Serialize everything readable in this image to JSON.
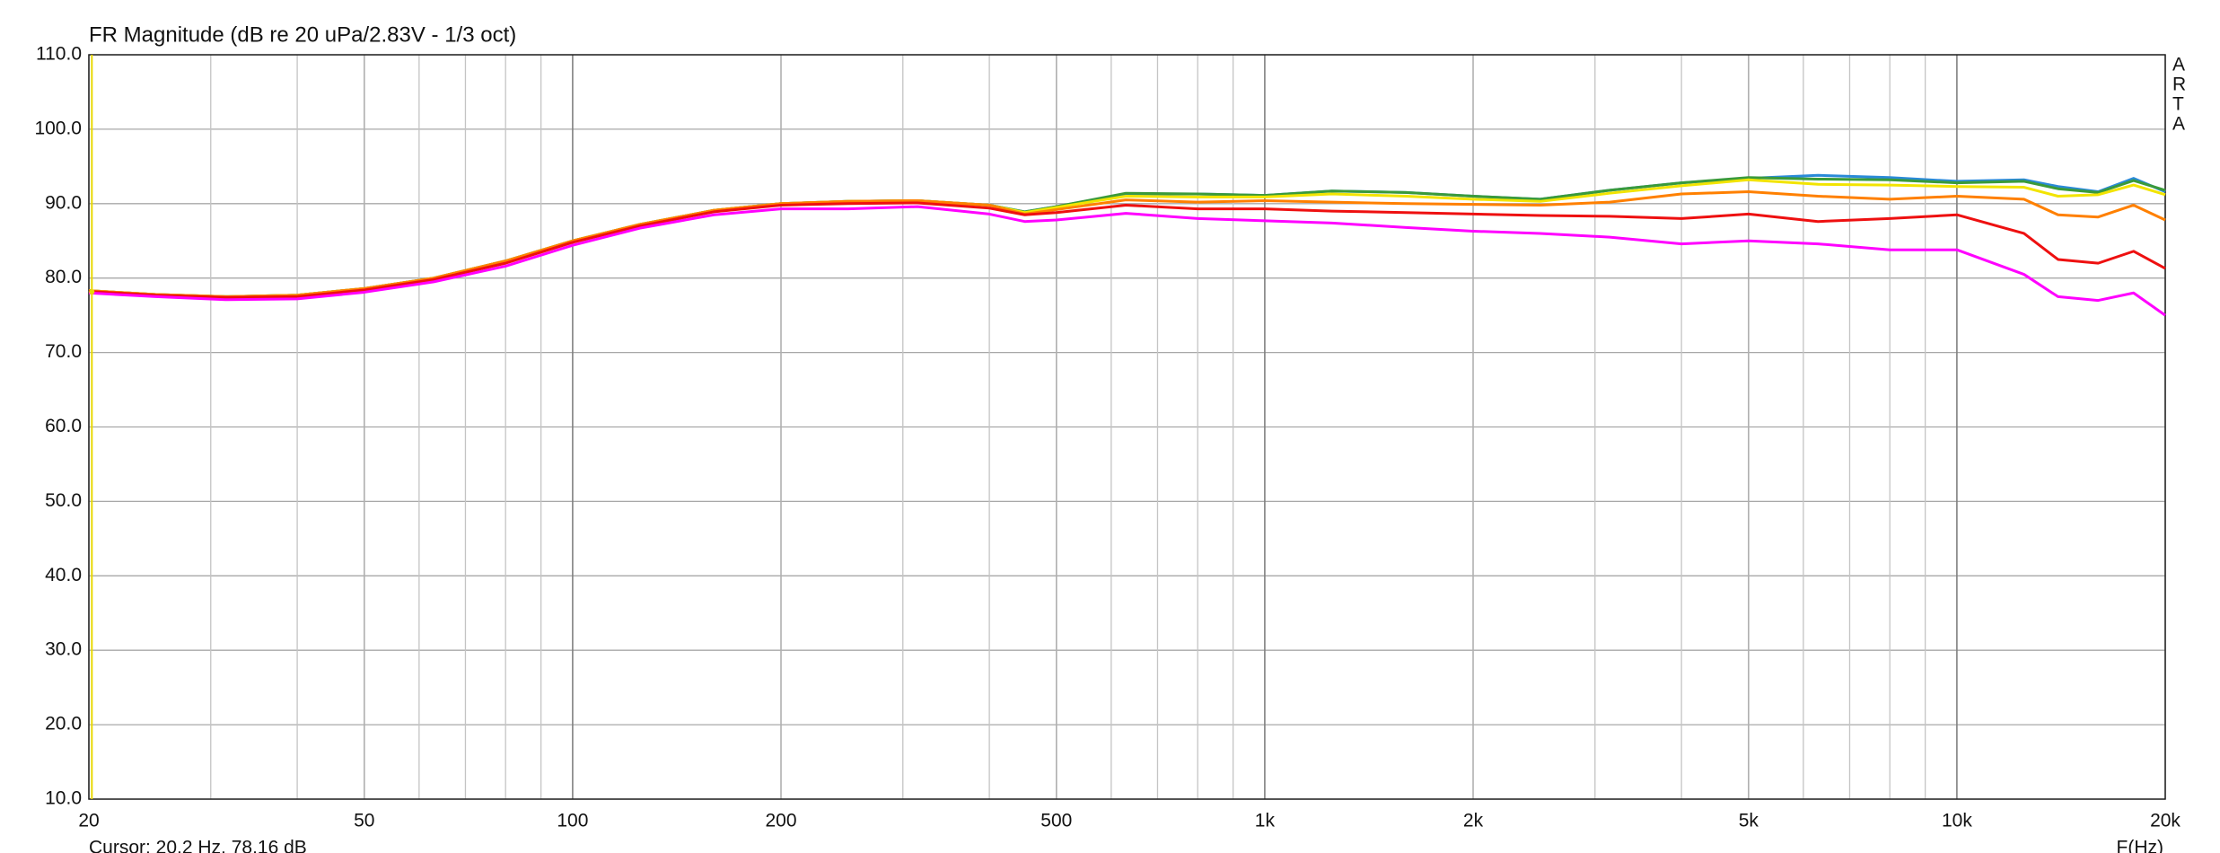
{
  "chart_data": {
    "type": "line",
    "title": "FR Magnitude (dB re 20 uPa/2.83V - 1/3 oct)",
    "x_label": "F(Hz)",
    "side_label": [
      "A",
      "R",
      "T",
      "A"
    ],
    "cursor": {
      "label": "Cursor: 20.2 Hz, 78.16 dB",
      "x": 20.2,
      "y": 78.16,
      "color": "#e8d800"
    },
    "xscale": "log",
    "grid": true,
    "xlim": [
      20,
      20000
    ],
    "ylim": [
      10,
      110
    ],
    "xticks": [
      20,
      50,
      100,
      200,
      500,
      {
        "value": 1000,
        "label": "1k"
      },
      {
        "value": 2000,
        "label": "2k"
      },
      {
        "value": 5000,
        "label": "5k"
      },
      {
        "value": 10000,
        "label": "10k"
      },
      {
        "value": 20000,
        "label": "20k"
      }
    ],
    "xminorticks": [
      30,
      40,
      60,
      70,
      80,
      90,
      300,
      400,
      600,
      700,
      800,
      900,
      3000,
      4000,
      6000,
      7000,
      8000,
      9000
    ],
    "yticks": [
      {
        "value": 10,
        "label": "10.0"
      },
      {
        "value": 20,
        "label": "20.0"
      },
      {
        "value": 30,
        "label": "30.0"
      },
      {
        "value": 40,
        "label": "40.0"
      },
      {
        "value": 50,
        "label": "50.0"
      },
      {
        "value": 60,
        "label": "60.0"
      },
      {
        "value": 70,
        "label": "70.0"
      },
      {
        "value": 80,
        "label": "80.0"
      },
      {
        "value": 90,
        "label": "90.0"
      },
      {
        "value": 100,
        "label": "100.0"
      },
      {
        "value": 110,
        "label": "110.0"
      }
    ],
    "x": [
      20,
      25,
      31.5,
      40,
      50,
      63,
      80,
      100,
      125,
      160,
      200,
      250,
      315,
      400,
      450,
      500,
      630,
      800,
      1000,
      1250,
      1600,
      2000,
      2500,
      3150,
      4000,
      5000,
      6300,
      8000,
      10000,
      12500,
      14000,
      16000,
      18000,
      20000
    ],
    "series": [
      {
        "color": "#2a8ad8",
        "values": [
          78.3,
          77.8,
          77.5,
          77.7,
          78.6,
          80.0,
          82.3,
          85.0,
          87.2,
          89.1,
          90.0,
          90.3,
          90.4,
          89.8,
          88.9,
          89.6,
          91.3,
          91.3,
          91.1,
          91.7,
          91.5,
          91.0,
          90.6,
          91.8,
          92.8,
          93.4,
          93.8,
          93.5,
          93.0,
          93.2,
          92.3,
          91.6,
          93.4,
          91.6
        ]
      },
      {
        "color": "#3a9a3a",
        "values": [
          78.3,
          77.8,
          77.5,
          77.7,
          78.6,
          80.0,
          82.3,
          85.0,
          87.2,
          89.1,
          90.0,
          90.3,
          90.4,
          89.8,
          88.9,
          89.6,
          91.4,
          91.3,
          91.1,
          91.7,
          91.5,
          91.0,
          90.6,
          91.8,
          92.8,
          93.5,
          93.3,
          93.2,
          92.8,
          93.0,
          92.0,
          91.5,
          93.1,
          91.8
        ]
      },
      {
        "color": "#f2e400",
        "values": [
          78.3,
          77.8,
          77.5,
          77.7,
          78.6,
          80.0,
          82.3,
          85.0,
          87.2,
          89.1,
          90.0,
          90.3,
          90.4,
          89.8,
          88.8,
          89.5,
          91.0,
          90.9,
          90.9,
          91.3,
          91.0,
          90.6,
          90.3,
          91.4,
          92.4,
          93.2,
          92.6,
          92.5,
          92.3,
          92.2,
          91.0,
          91.2,
          92.5,
          91.2
        ]
      },
      {
        "color": "#ff8000",
        "values": [
          78.3,
          77.8,
          77.5,
          77.7,
          78.6,
          80.0,
          82.3,
          85.0,
          87.2,
          89.1,
          90.0,
          90.3,
          90.4,
          89.8,
          88.6,
          89.2,
          90.5,
          90.2,
          90.4,
          90.2,
          90.0,
          89.9,
          89.8,
          90.2,
          91.3,
          91.6,
          91.0,
          90.6,
          91.0,
          90.6,
          88.5,
          88.2,
          89.8,
          87.8
        ]
      },
      {
        "color": "#ee1010",
        "values": [
          78.2,
          77.7,
          77.4,
          77.5,
          78.4,
          79.8,
          82.0,
          84.8,
          87.0,
          88.9,
          89.8,
          90.0,
          90.1,
          89.4,
          88.5,
          88.8,
          89.8,
          89.3,
          89.3,
          89.0,
          88.8,
          88.6,
          88.4,
          88.3,
          88.0,
          88.6,
          87.6,
          88.0,
          88.5,
          86.0,
          82.5,
          82.0,
          83.6,
          81.3
        ]
      },
      {
        "color": "#ff00ff",
        "values": [
          78.0,
          77.5,
          77.1,
          77.2,
          78.1,
          79.5,
          81.6,
          84.4,
          86.7,
          88.5,
          89.3,
          89.3,
          89.6,
          88.6,
          87.6,
          87.8,
          88.7,
          88.0,
          87.7,
          87.4,
          86.8,
          86.3,
          86.0,
          85.5,
          84.6,
          85.0,
          84.6,
          83.8,
          83.8,
          80.5,
          77.5,
          77.0,
          78.0,
          75.0
        ]
      }
    ]
  }
}
